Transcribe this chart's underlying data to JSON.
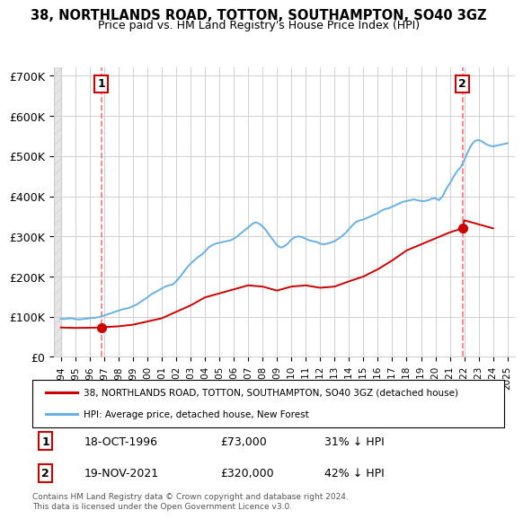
{
  "title": "38, NORTHLANDS ROAD, TOTTON, SOUTHAMPTON, SO40 3GZ",
  "subtitle": "Price paid vs. HM Land Registry's House Price Index (HPI)",
  "legend_line1": "38, NORTHLANDS ROAD, TOTTON, SOUTHAMPTON, SO40 3GZ (detached house)",
  "legend_line2": "HPI: Average price, detached house, New Forest",
  "sale1_label": "1",
  "sale1_date": "18-OCT-1996",
  "sale1_price": "£73,000",
  "sale1_hpi": "31% ↓ HPI",
  "sale1_year": 1996.8,
  "sale1_value": 73000,
  "sale2_label": "2",
  "sale2_date": "19-NOV-2021",
  "sale2_price": "£320,000",
  "sale2_hpi": "42% ↓ HPI",
  "sale2_year": 2021.88,
  "sale2_value": 320000,
  "hpi_color": "#6ab0e0",
  "price_color": "#cc0000",
  "dashed_color": "#ff6666",
  "background_color": "#ffffff",
  "grid_color": "#d0d0d0",
  "hatch_color": "#c8c8c8",
  "ylim": [
    0,
    720000
  ],
  "xlim": [
    1993.5,
    2025.5
  ],
  "ylabel_ticks": [
    0,
    100000,
    200000,
    300000,
    400000,
    500000,
    600000,
    700000
  ],
  "ylabel_labels": [
    "£0",
    "£100K",
    "£200K",
    "£300K",
    "£400K",
    "£500K",
    "£600K",
    "£700K"
  ],
  "xticks": [
    1994,
    1995,
    1996,
    1997,
    1998,
    1999,
    2000,
    2001,
    2002,
    2003,
    2004,
    2005,
    2006,
    2007,
    2008,
    2009,
    2010,
    2011,
    2012,
    2013,
    2014,
    2015,
    2016,
    2017,
    2018,
    2019,
    2020,
    2021,
    2022,
    2023,
    2024,
    2025
  ],
  "copyright": "Contains HM Land Registry data © Crown copyright and database right 2024.\nThis data is licensed under the Open Government Licence v3.0.",
  "hpi_data": [
    [
      1994.0,
      95000
    ],
    [
      1994.25,
      94000
    ],
    [
      1994.5,
      95500
    ],
    [
      1994.75,
      96000
    ],
    [
      1995.0,
      94000
    ],
    [
      1995.25,
      93000
    ],
    [
      1995.5,
      94000
    ],
    [
      1995.75,
      95000
    ],
    [
      1996.0,
      96000
    ],
    [
      1996.25,
      97000
    ],
    [
      1996.5,
      98000
    ],
    [
      1996.75,
      100000
    ],
    [
      1997.0,
      103000
    ],
    [
      1997.25,
      106000
    ],
    [
      1997.5,
      109000
    ],
    [
      1997.75,
      112000
    ],
    [
      1998.0,
      115000
    ],
    [
      1998.25,
      118000
    ],
    [
      1998.5,
      120000
    ],
    [
      1998.75,
      122000
    ],
    [
      1999.0,
      126000
    ],
    [
      1999.25,
      130000
    ],
    [
      1999.5,
      136000
    ],
    [
      1999.75,
      142000
    ],
    [
      2000.0,
      148000
    ],
    [
      2000.25,
      155000
    ],
    [
      2000.5,
      160000
    ],
    [
      2000.75,
      165000
    ],
    [
      2001.0,
      170000
    ],
    [
      2001.25,
      175000
    ],
    [
      2001.5,
      178000
    ],
    [
      2001.75,
      180000
    ],
    [
      2002.0,
      188000
    ],
    [
      2002.25,
      198000
    ],
    [
      2002.5,
      210000
    ],
    [
      2002.75,
      222000
    ],
    [
      2003.0,
      232000
    ],
    [
      2003.25,
      240000
    ],
    [
      2003.5,
      248000
    ],
    [
      2003.75,
      254000
    ],
    [
      2004.0,
      262000
    ],
    [
      2004.25,
      272000
    ],
    [
      2004.5,
      278000
    ],
    [
      2004.75,
      282000
    ],
    [
      2005.0,
      284000
    ],
    [
      2005.25,
      286000
    ],
    [
      2005.5,
      288000
    ],
    [
      2005.75,
      290000
    ],
    [
      2006.0,
      294000
    ],
    [
      2006.25,
      300000
    ],
    [
      2006.5,
      308000
    ],
    [
      2006.75,
      315000
    ],
    [
      2007.0,
      322000
    ],
    [
      2007.25,
      330000
    ],
    [
      2007.5,
      335000
    ],
    [
      2007.75,
      332000
    ],
    [
      2008.0,
      325000
    ],
    [
      2008.25,
      315000
    ],
    [
      2008.5,
      302000
    ],
    [
      2008.75,
      290000
    ],
    [
      2009.0,
      278000
    ],
    [
      2009.25,
      272000
    ],
    [
      2009.5,
      275000
    ],
    [
      2009.75,
      282000
    ],
    [
      2010.0,
      292000
    ],
    [
      2010.25,
      298000
    ],
    [
      2010.5,
      300000
    ],
    [
      2010.75,
      298000
    ],
    [
      2011.0,
      294000
    ],
    [
      2011.25,
      290000
    ],
    [
      2011.5,
      288000
    ],
    [
      2011.75,
      286000
    ],
    [
      2012.0,
      282000
    ],
    [
      2012.25,
      280000
    ],
    [
      2012.5,
      282000
    ],
    [
      2012.75,
      285000
    ],
    [
      2013.0,
      288000
    ],
    [
      2013.25,
      294000
    ],
    [
      2013.5,
      300000
    ],
    [
      2013.75,
      308000
    ],
    [
      2014.0,
      318000
    ],
    [
      2014.25,
      328000
    ],
    [
      2014.5,
      336000
    ],
    [
      2014.75,
      340000
    ],
    [
      2015.0,
      342000
    ],
    [
      2015.25,
      346000
    ],
    [
      2015.5,
      350000
    ],
    [
      2015.75,
      354000
    ],
    [
      2016.0,
      358000
    ],
    [
      2016.25,
      364000
    ],
    [
      2016.5,
      368000
    ],
    [
      2016.75,
      370000
    ],
    [
      2017.0,
      374000
    ],
    [
      2017.25,
      378000
    ],
    [
      2017.5,
      382000
    ],
    [
      2017.75,
      386000
    ],
    [
      2018.0,
      388000
    ],
    [
      2018.25,
      390000
    ],
    [
      2018.5,
      392000
    ],
    [
      2018.75,
      390000
    ],
    [
      2019.0,
      388000
    ],
    [
      2019.25,
      388000
    ],
    [
      2019.5,
      390000
    ],
    [
      2019.75,
      394000
    ],
    [
      2020.0,
      395000
    ],
    [
      2020.25,
      390000
    ],
    [
      2020.5,
      400000
    ],
    [
      2020.75,
      418000
    ],
    [
      2021.0,
      432000
    ],
    [
      2021.25,
      448000
    ],
    [
      2021.5,
      462000
    ],
    [
      2021.75,
      472000
    ],
    [
      2022.0,
      490000
    ],
    [
      2022.25,
      510000
    ],
    [
      2022.5,
      528000
    ],
    [
      2022.75,
      538000
    ],
    [
      2023.0,
      540000
    ],
    [
      2023.25,
      536000
    ],
    [
      2023.5,
      530000
    ],
    [
      2023.75,
      526000
    ],
    [
      2024.0,
      524000
    ],
    [
      2024.25,
      526000
    ],
    [
      2024.5,
      528000
    ],
    [
      2024.75,
      530000
    ],
    [
      2025.0,
      532000
    ]
  ],
  "price_data": [
    [
      1994.0,
      73000
    ],
    [
      1995.0,
      72000
    ],
    [
      1996.0,
      72500
    ],
    [
      1996.8,
      73000
    ],
    [
      1997.0,
      74000
    ],
    [
      1998.0,
      76000
    ],
    [
      1999.0,
      80000
    ],
    [
      2000.0,
      88000
    ],
    [
      2001.0,
      96000
    ],
    [
      2002.0,
      112000
    ],
    [
      2003.0,
      128000
    ],
    [
      2004.0,
      148000
    ],
    [
      2005.0,
      158000
    ],
    [
      2006.0,
      168000
    ],
    [
      2007.0,
      178000
    ],
    [
      2008.0,
      175000
    ],
    [
      2009.0,
      165000
    ],
    [
      2010.0,
      175000
    ],
    [
      2011.0,
      178000
    ],
    [
      2012.0,
      172000
    ],
    [
      2013.0,
      175000
    ],
    [
      2014.0,
      188000
    ],
    [
      2015.0,
      200000
    ],
    [
      2016.0,
      218000
    ],
    [
      2017.0,
      240000
    ],
    [
      2018.0,
      265000
    ],
    [
      2019.0,
      280000
    ],
    [
      2020.0,
      295000
    ],
    [
      2021.0,
      310000
    ],
    [
      2021.88,
      320000
    ],
    [
      2022.0,
      340000
    ],
    [
      2022.5,
      335000
    ],
    [
      2023.0,
      330000
    ],
    [
      2023.5,
      325000
    ],
    [
      2024.0,
      320000
    ]
  ]
}
